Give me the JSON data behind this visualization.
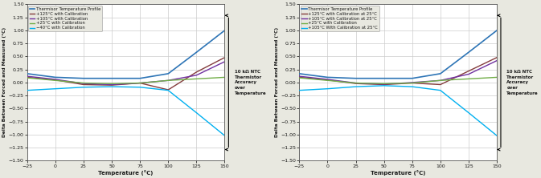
{
  "temp_x": [
    -25,
    0,
    25,
    50,
    75,
    100,
    125,
    150
  ],
  "chart1": {
    "title_annotation": "10 kΩ NTC\nThermistor\nAccuracy\nover\nTemperature",
    "ylabel": "Delta Between Forced and Measured (°C)",
    "xlabel": "Temperature (°C)",
    "ylim": [
      -1.5,
      1.5
    ],
    "xlim": [
      -25,
      150
    ],
    "xticks": [
      -25,
      0,
      25,
      50,
      75,
      100,
      125,
      150
    ],
    "yticks": [
      -1.5,
      -1.25,
      -1.0,
      -0.75,
      -0.5,
      -0.25,
      0,
      0.25,
      0.5,
      0.75,
      1.0,
      1.25,
      1.5
    ],
    "series": [
      {
        "label": "Thermisor Temperature Profile",
        "color": "#2E75B6",
        "lw": 1.2,
        "y": [
          0.17,
          0.1,
          0.08,
          0.08,
          0.08,
          0.17,
          0.58,
          1.0
        ]
      },
      {
        "label": "+125°C with Calibration",
        "color": "#843C3C",
        "lw": 1.0,
        "y": [
          0.1,
          0.05,
          -0.04,
          -0.05,
          -0.01,
          -0.14,
          0.2,
          0.48
        ]
      },
      {
        "label": "+105°C with Calibration",
        "color": "#7030A0",
        "lw": 1.0,
        "y": [
          0.12,
          0.06,
          -0.02,
          -0.04,
          -0.01,
          0.04,
          0.14,
          0.4
        ]
      },
      {
        "label": "+25°C with Calibration",
        "color": "#70AD47",
        "lw": 1.0,
        "y": [
          0.09,
          0.04,
          -0.01,
          -0.02,
          -0.01,
          0.04,
          0.07,
          0.1
        ]
      },
      {
        "label": "−40°C with Calibration",
        "color": "#00B0F0",
        "lw": 1.0,
        "y": [
          -0.15,
          -0.12,
          -0.09,
          -0.08,
          -0.09,
          -0.15,
          -0.58,
          -1.02
        ]
      }
    ]
  },
  "chart2": {
    "title_annotation": "10 kΩ NTC\nThermistor\nAccuracy\nover\nTemperature",
    "ylabel": "Delta Between Forced and Measured (°C)",
    "xlabel": "Temperature (°C)",
    "ylim": [
      -1.5,
      1.5
    ],
    "xlim": [
      -25,
      150
    ],
    "xticks": [
      -25,
      0,
      25,
      50,
      75,
      100,
      125,
      150
    ],
    "yticks": [
      -1.5,
      -1.25,
      -1.0,
      -0.75,
      -0.5,
      -0.25,
      0,
      0.25,
      0.5,
      0.75,
      1.0,
      1.25,
      1.5
    ],
    "series": [
      {
        "label": "Thermisor Temperature Profile",
        "color": "#2E75B6",
        "lw": 1.2,
        "y": [
          0.17,
          0.1,
          0.08,
          0.08,
          0.08,
          0.17,
          0.58,
          1.0
        ]
      },
      {
        "label": "+125°C with Calibration at 25°C",
        "color": "#843C3C",
        "lw": 1.0,
        "y": [
          0.1,
          0.05,
          -0.02,
          -0.04,
          -0.01,
          -0.04,
          0.22,
          0.48
        ]
      },
      {
        "label": "+105°C with Calibration at 25°C",
        "color": "#7030A0",
        "lw": 1.0,
        "y": [
          0.12,
          0.06,
          -0.01,
          -0.03,
          0.0,
          0.04,
          0.16,
          0.42
        ]
      },
      {
        "label": "+25°C with Calibration",
        "color": "#70AD47",
        "lw": 1.0,
        "y": [
          0.09,
          0.04,
          -0.01,
          -0.02,
          -0.01,
          0.04,
          0.07,
          0.1
        ]
      },
      {
        "label": "+105°C With Calibration at 25°C",
        "color": "#00B0F0",
        "lw": 1.0,
        "y": [
          -0.15,
          -0.12,
          -0.08,
          -0.06,
          -0.08,
          -0.15,
          -0.58,
          -1.02
        ]
      }
    ]
  },
  "plot_bg": "#FFFFFF",
  "fig_bg": "#E8E8E0",
  "grid_color": "#CCCCCC",
  "text_color": "#1A1A1A",
  "spine_color": "#555555"
}
